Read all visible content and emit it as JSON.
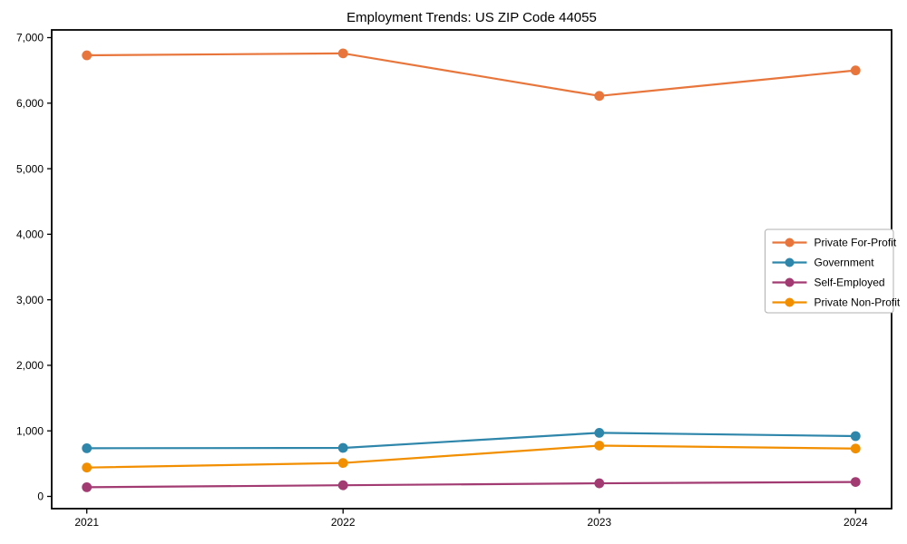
{
  "figure": {
    "background": "#ffffff",
    "frame_color": "#000000"
  },
  "chart_data": {
    "type": "line",
    "title": "Employment Trends: US ZIP Code 44055",
    "xlabel": "",
    "ylabel": "",
    "x": [
      2021,
      2022,
      2023,
      2024
    ],
    "x_tick_labels": [
      "2021",
      "2022",
      "2023",
      "2024"
    ],
    "ylim": [
      0,
      7000
    ],
    "y_ticks": [
      0,
      1000,
      2000,
      3000,
      4000,
      5000,
      6000,
      7000
    ],
    "y_tick_labels": [
      "0",
      "1,000",
      "2,000",
      "3,000",
      "4,000",
      "5,000",
      "6,000",
      "7,000"
    ],
    "grid": false,
    "legend_position": "center-right",
    "series": [
      {
        "name": "Private For-Profit",
        "color": "#E8763C",
        "values": [
          6730,
          6760,
          6110,
          6500
        ]
      },
      {
        "name": "Government",
        "color": "#2E86AB",
        "values": [
          735,
          740,
          970,
          920
        ]
      },
      {
        "name": "Self-Employed",
        "color": "#A23B72",
        "values": [
          140,
          170,
          200,
          220
        ]
      },
      {
        "name": "Private Non-Profit",
        "color": "#F18F01",
        "values": [
          440,
          510,
          775,
          730
        ]
      }
    ]
  }
}
